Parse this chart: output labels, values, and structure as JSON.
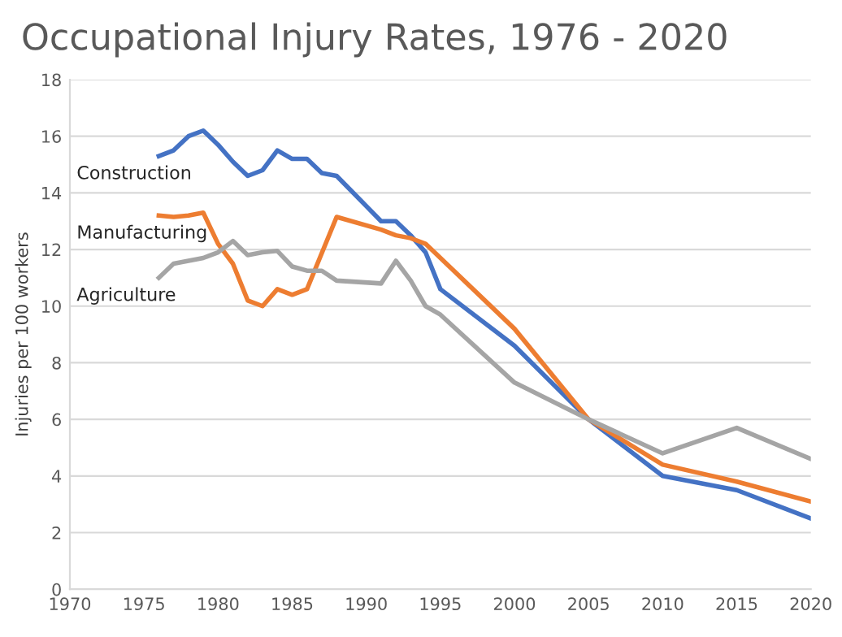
{
  "chart_data": {
    "type": "line",
    "title": "Occupational Injury Rates, 1976 - 2020",
    "ylabel": "Injuries per 100 workers",
    "xlim": [
      1970,
      2020
    ],
    "xticks": [
      1970,
      1975,
      1980,
      1985,
      1990,
      1995,
      2000,
      2005,
      2010,
      2015,
      2020
    ],
    "ylim": [
      0,
      18
    ],
    "yticks": [
      0,
      2,
      4,
      6,
      8,
      10,
      12,
      14,
      16,
      18
    ],
    "grid": "y",
    "legend": false,
    "marker": "none",
    "line_style": "solid",
    "series": [
      {
        "name": "Construction",
        "color": "#4472c4",
        "x": [
          1976,
          1977,
          1978,
          1979,
          1980,
          1981,
          1982,
          1983,
          1984,
          1985,
          1986,
          1987,
          1988,
          1991,
          1992,
          1993,
          1994,
          1995,
          2000,
          2005,
          2010,
          2015,
          2020
        ],
        "values": [
          15.3,
          15.5,
          16.0,
          16.2,
          15.7,
          15.1,
          14.6,
          14.8,
          15.5,
          15.2,
          15.2,
          14.7,
          14.6,
          13.0,
          13.0,
          12.5,
          11.9,
          10.6,
          8.6,
          6.0,
          4.0,
          3.5,
          2.5
        ]
      },
      {
        "name": "Manufacturing",
        "color": "#ed7d31",
        "x": [
          1976,
          1977,
          1978,
          1979,
          1980,
          1981,
          1982,
          1983,
          1984,
          1985,
          1986,
          1988,
          1991,
          1992,
          1993,
          1994,
          2000,
          2005,
          2010,
          2015,
          2020
        ],
        "values": [
          13.2,
          13.15,
          13.2,
          13.3,
          12.2,
          11.5,
          10.2,
          10.0,
          10.6,
          10.4,
          10.6,
          13.15,
          12.7,
          12.5,
          12.4,
          12.2,
          9.2,
          6.0,
          4.4,
          3.8,
          3.1
        ]
      },
      {
        "name": "Agriculture",
        "color": "#a5a5a5",
        "x": [
          1976,
          1977,
          1978,
          1979,
          1980,
          1981,
          1982,
          1983,
          1984,
          1985,
          1986,
          1987,
          1988,
          1991,
          1992,
          1993,
          1994,
          1995,
          2000,
          2005,
          2010,
          2015,
          2020
        ],
        "values": [
          11.0,
          11.5,
          11.6,
          11.7,
          11.9,
          12.3,
          11.8,
          11.9,
          11.95,
          11.4,
          11.25,
          11.25,
          10.9,
          10.8,
          11.6,
          10.9,
          10.0,
          9.7,
          7.3,
          6.0,
          4.8,
          5.7,
          4.6
        ]
      }
    ]
  }
}
